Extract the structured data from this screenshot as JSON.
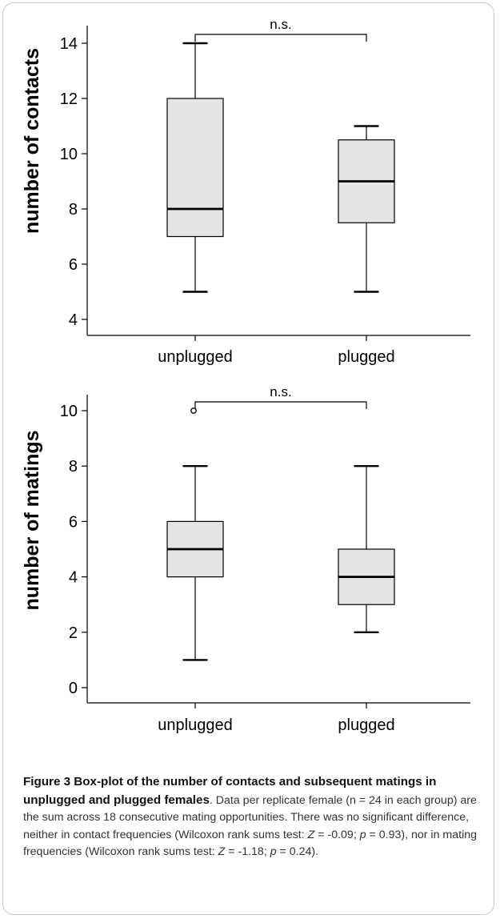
{
  "chart_data": [
    {
      "type": "box",
      "ylabel": "number of contacts",
      "ylim": [
        4,
        14
      ],
      "yticks": [
        4,
        6,
        8,
        10,
        12,
        14
      ],
      "categories": [
        "unplugged",
        "plugged"
      ],
      "boxes": [
        {
          "category": "unplugged",
          "whisker_low": 5,
          "q1": 7,
          "median": 8,
          "q3": 12,
          "whisker_high": 14,
          "outliers": []
        },
        {
          "category": "plugged",
          "whisker_low": 5,
          "q1": 7.5,
          "median": 9,
          "q3": 10.5,
          "whisker_high": 11,
          "outliers": []
        }
      ],
      "annotation": "n.s."
    },
    {
      "type": "box",
      "ylabel": "number of matings",
      "ylim": [
        0,
        10
      ],
      "yticks": [
        0,
        2,
        4,
        6,
        8,
        10
      ],
      "categories": [
        "unplugged",
        "plugged"
      ],
      "boxes": [
        {
          "category": "unplugged",
          "whisker_low": 1,
          "q1": 4,
          "median": 5,
          "q3": 6,
          "whisker_high": 8,
          "outliers": [
            10
          ]
        },
        {
          "category": "plugged",
          "whisker_low": 2,
          "q1": 3,
          "median": 4,
          "q3": 5,
          "whisker_high": 8,
          "outliers": []
        }
      ],
      "annotation": "n.s."
    }
  ],
  "caption": {
    "title": "Figure 3 Box-plot of the number of contacts and subsequent matings in unplugged and plugged females",
    "p1": ". Data per replicate female (n = 24 in each group) are the sum across 18 consecutive mating opportunities. There was no significant difference, neither in contact frequencies (Wilcoxon rank sums test: ",
    "z1_sym": "Z",
    "z1_val": " = -0.09; ",
    "p1_sym": "p",
    "p1_val": " = 0.93), nor in mating frequencies (Wilcoxon rank sums test: ",
    "z2_sym": "Z",
    "z2_val": " = -1.18; ",
    "p2_sym": "p",
    "p2_val": " = 0.24)."
  }
}
